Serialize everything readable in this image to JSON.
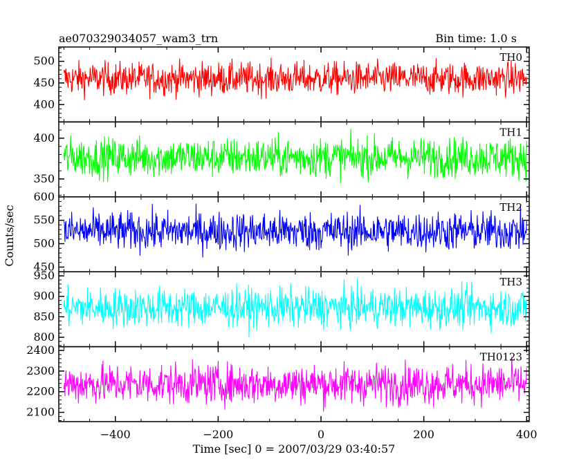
{
  "header": {
    "title": "ae070329034057_wam3_trn",
    "bin_time": "Bin time: 1.0 s"
  },
  "chart_data": {
    "type": "line",
    "xlabel": "Time [sec] 0 = 2007/03/29 03:40:57",
    "ylabel": "Counts/sec",
    "xlim": [
      -510,
      405
    ],
    "x_ticks": [
      -400,
      -200,
      0,
      200,
      400
    ],
    "x_sampling_step": 1.0,
    "grid": false,
    "panels": [
      {
        "name": "TH0",
        "color": "#ff0000",
        "ylim": [
          360,
          533
        ],
        "y_ticks": [
          400,
          450,
          500
        ],
        "x_range": [
          -500,
          400
        ],
        "mean": 450,
        "spread": [
          395,
          525
        ]
      },
      {
        "name": "TH1",
        "color": "#00ff00",
        "ylim": [
          328,
          420
        ],
        "y_ticks": [
          350,
          400
        ],
        "x_range": [
          -500,
          400
        ],
        "mean": 373,
        "spread": [
          335,
          418
        ]
      },
      {
        "name": "TH2",
        "color": "#0000ff",
        "ylim": [
          440,
          600
        ],
        "y_ticks": [
          450,
          500,
          550,
          600
        ],
        "x_range": [
          -500,
          400
        ],
        "mean": 510,
        "spread": [
          455,
          598
        ]
      },
      {
        "name": "TH3",
        "color": "#00ffff",
        "ylim": [
          777,
          960
        ],
        "y_ticks": [
          800,
          850,
          900,
          950
        ],
        "x_range": [
          -500,
          400
        ],
        "mean": 858,
        "spread": [
          790,
          955
        ]
      },
      {
        "name": "TH0123",
        "color": "#ff00ff",
        "ylim": [
          2055,
          2418
        ],
        "y_ticks": [
          2100,
          2200,
          2300,
          2400
        ],
        "x_range": [
          -500,
          400
        ],
        "mean": 2235,
        "spread": [
          2070,
          2405
        ]
      }
    ]
  }
}
